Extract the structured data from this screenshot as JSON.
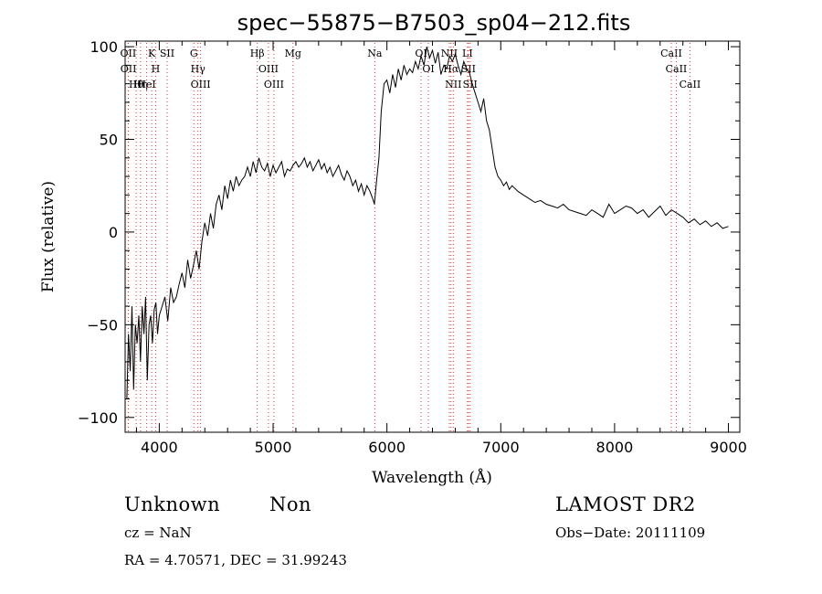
{
  "chart_data": {
    "type": "line",
    "title": "spec−55875−B7503_sp04−212.fits",
    "xlabel": "Wavelength (Å)",
    "ylabel": "Flux (relative)",
    "xlim": [
      3700,
      9100
    ],
    "ylim": [
      -108,
      103
    ],
    "xticks": [
      4000,
      5000,
      6000,
      7000,
      8000,
      9000
    ],
    "yticks": [
      -100,
      -50,
      0,
      50,
      100
    ],
    "ytick_labels": [
      "−100",
      "−50",
      "0",
      "50",
      "100"
    ],
    "grid": false,
    "series": [
      {
        "x": [
          3715,
          3730,
          3745,
          3760,
          3775,
          3790,
          3805,
          3820,
          3835,
          3850,
          3865,
          3880,
          3895,
          3910,
          3925,
          3940,
          3955,
          3970,
          3985,
          4000,
          4025,
          4050,
          4075,
          4100,
          4125,
          4150,
          4175,
          4200,
          4225,
          4250,
          4275,
          4300,
          4325,
          4350,
          4375,
          4400,
          4425,
          4450,
          4475,
          4500,
          4525,
          4550,
          4575,
          4600,
          4625,
          4650,
          4675,
          4700,
          4725,
          4750,
          4775,
          4800,
          4825,
          4850,
          4875,
          4900,
          4925,
          4950,
          4975,
          5000,
          5025,
          5050,
          5075,
          5100,
          5125,
          5150,
          5175,
          5200,
          5225,
          5250,
          5275,
          5300,
          5325,
          5350,
          5375,
          5400,
          5425,
          5450,
          5475,
          5500,
          5525,
          5550,
          5575,
          5600,
          5625,
          5650,
          5675,
          5700,
          5725,
          5750,
          5775,
          5800,
          5825,
          5850,
          5875,
          5890,
          5910,
          5930,
          5950,
          5975,
          6000,
          6025,
          6050,
          6075,
          6100,
          6125,
          6150,
          6175,
          6200,
          6225,
          6250,
          6275,
          6300,
          6325,
          6350,
          6375,
          6400,
          6425,
          6450,
          6475,
          6500,
          6525,
          6550,
          6575,
          6600,
          6625,
          6650,
          6675,
          6700,
          6725,
          6750,
          6775,
          6800,
          6825,
          6850,
          6875,
          6900,
          6925,
          6950,
          6975,
          7000,
          7025,
          7050,
          7075,
          7100,
          7150,
          7200,
          7250,
          7300,
          7350,
          7400,
          7450,
          7500,
          7550,
          7600,
          7650,
          7700,
          7750,
          7800,
          7850,
          7900,
          7950,
          8000,
          8050,
          8100,
          8150,
          8200,
          8250,
          8300,
          8350,
          8400,
          8450,
          8500,
          8550,
          8600,
          8650,
          8700,
          8750,
          8800,
          8850,
          8900,
          8950,
          9000
        ],
        "y": [
          -90,
          -55,
          -75,
          -40,
          -85,
          -50,
          -60,
          -45,
          -70,
          -40,
          -55,
          -35,
          -80,
          -50,
          -45,
          -60,
          -42,
          -38,
          -55,
          -45,
          -40,
          -35,
          -48,
          -30,
          -38,
          -35,
          -28,
          -22,
          -30,
          -15,
          -25,
          -18,
          -10,
          -20,
          -5,
          5,
          -2,
          10,
          2,
          15,
          20,
          12,
          25,
          18,
          28,
          22,
          30,
          25,
          28,
          30,
          35,
          30,
          38,
          32,
          40,
          35,
          33,
          37,
          30,
          36,
          32,
          35,
          38,
          30,
          34,
          33,
          36,
          38,
          35,
          37,
          40,
          35,
          38,
          33,
          36,
          39,
          34,
          37,
          32,
          35,
          30,
          33,
          36,
          31,
          28,
          33,
          30,
          25,
          28,
          22,
          26,
          20,
          25,
          22,
          18,
          15,
          28,
          40,
          65,
          80,
          82,
          75,
          85,
          78,
          88,
          82,
          90,
          85,
          88,
          86,
          92,
          88,
          95,
          90,
          100,
          94,
          98,
          91,
          97,
          85,
          90,
          88,
          95,
          92,
          96,
          90,
          85,
          92,
          88,
          86,
          80,
          75,
          70,
          65,
          72,
          60,
          55,
          45,
          35,
          30,
          28,
          25,
          27,
          23,
          25,
          22,
          20,
          18,
          16,
          17,
          15,
          14,
          13,
          15,
          12,
          11,
          10,
          9,
          12,
          10,
          8,
          15,
          10,
          12,
          14,
          13,
          10,
          12,
          8,
          11,
          14,
          9,
          12,
          10,
          8,
          5,
          7,
          4,
          6,
          3,
          5,
          2,
          3
        ]
      }
    ],
    "spectral_lines": [
      {
        "label": "Hθ",
        "x": 3797
      },
      {
        "label": "K",
        "x": 3934
      },
      {
        "label": "OII",
        "x": 3727
      },
      {
        "label": "HeI",
        "x": 3889
      },
      {
        "label": "SII",
        "x": 4069
      },
      {
        "label": "OII",
        "x": 3729
      },
      {
        "label": "Hη",
        "x": 3835
      },
      {
        "label": "H",
        "x": 3968
      },
      {
        "label": "G",
        "x": 4304
      },
      {
        "label": "OIII",
        "x": 4363
      },
      {
        "label": "Hγ",
        "x": 4340
      },
      {
        "label": "Hβ",
        "x": 4861
      },
      {
        "label": "OIII",
        "x": 4959
      },
      {
        "label": "OIII",
        "x": 5007
      },
      {
        "label": "Mg",
        "x": 5175
      },
      {
        "label": "Na",
        "x": 5893
      },
      {
        "label": "OI",
        "x": 6300
      },
      {
        "label": "OI",
        "x": 6364
      },
      {
        "label": "NII",
        "x": 6548
      },
      {
        "label": "Hα",
        "x": 6563
      },
      {
        "label": "NII",
        "x": 6583
      },
      {
        "label": "SII",
        "x": 6716
      },
      {
        "label": "SII",
        "x": 6731
      },
      {
        "label": "LI",
        "x": 6708
      },
      {
        "label": "CaII",
        "x": 8498
      },
      {
        "label": "CaII",
        "x": 8542
      },
      {
        "label": "CaII",
        "x": 8662
      }
    ]
  },
  "info": {
    "class": "Unknown",
    "subclass": "Non",
    "survey": "LAMOST DR2",
    "redshift": "cz = NaN",
    "obs_date": "Obs−Date: 20111109",
    "coords": "RA =    4.70571, DEC =   31.99243"
  }
}
